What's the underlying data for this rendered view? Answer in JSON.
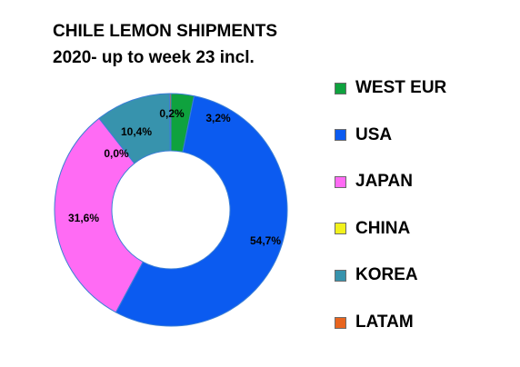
{
  "title": {
    "line1": "CHILE LEMON SHIPMENTS",
    "line2": "2020- up to week 23 incl."
  },
  "chart_data": {
    "type": "pie",
    "style": "donut",
    "title": "CHILE LEMON SHIPMENTS 2020- up to week 23 incl.",
    "legend_position": "right",
    "categories": [
      "WEST EUR",
      "USA",
      "JAPAN",
      "CHINA",
      "KOREA",
      "LATAM"
    ],
    "values": [
      3.2,
      54.7,
      31.6,
      0.0,
      10.4,
      0.2
    ],
    "data_labels": [
      "3,2%",
      "54,7%",
      "31,6%",
      "0,0%",
      "10,4%",
      "0,2%"
    ],
    "colors": [
      "#0fa23e",
      "#0b5bf0",
      "#ff6bf4",
      "#f2f21c",
      "#3793ad",
      "#e8641e"
    ]
  }
}
